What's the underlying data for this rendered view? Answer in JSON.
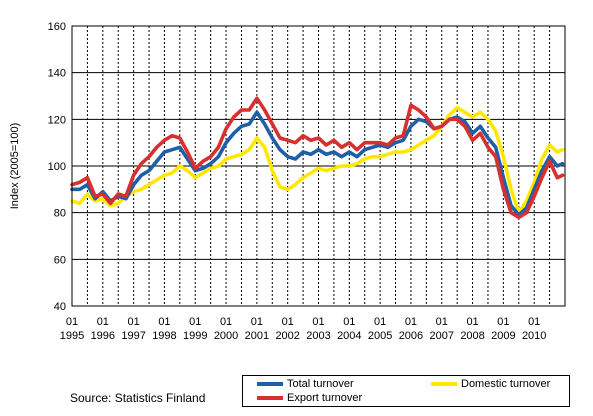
{
  "chart_data": {
    "type": "line",
    "title": "",
    "xlabel": "",
    "ylabel": "Index (2005=100)",
    "ylim": [
      40,
      160
    ],
    "yticks": [
      40,
      60,
      80,
      100,
      120,
      140,
      160
    ],
    "grid": true,
    "legend_position": "bottom-right",
    "x_start_year": 1995,
    "years": [
      "1995",
      "1996",
      "1997",
      "1998",
      "1999",
      "2000",
      "2001",
      "2002",
      "2003",
      "2004",
      "2005",
      "2006",
      "2007",
      "2008",
      "2009",
      "2010"
    ],
    "month_label": "01",
    "series": [
      {
        "name": "Total turnover",
        "color": "#1f5fa8",
        "points": [
          [
            1995.0,
            90
          ],
          [
            1995.25,
            90
          ],
          [
            1995.5,
            92
          ],
          [
            1995.75,
            86
          ],
          [
            1996.0,
            89
          ],
          [
            1996.25,
            85
          ],
          [
            1996.5,
            87
          ],
          [
            1996.75,
            86
          ],
          [
            1997.0,
            92
          ],
          [
            1997.25,
            96
          ],
          [
            1997.5,
            98
          ],
          [
            1997.75,
            102
          ],
          [
            1998.0,
            106
          ],
          [
            1998.25,
            107
          ],
          [
            1998.5,
            108
          ],
          [
            1998.75,
            103
          ],
          [
            1999.0,
            98
          ],
          [
            1999.25,
            99
          ],
          [
            1999.5,
            101
          ],
          [
            1999.75,
            104
          ],
          [
            2000.0,
            110
          ],
          [
            2000.25,
            114
          ],
          [
            2000.5,
            117
          ],
          [
            2000.75,
            118
          ],
          [
            2001.0,
            123
          ],
          [
            2001.25,
            118
          ],
          [
            2001.5,
            112
          ],
          [
            2001.75,
            107
          ],
          [
            2002.0,
            104
          ],
          [
            2002.25,
            103
          ],
          [
            2002.5,
            106
          ],
          [
            2002.75,
            105
          ],
          [
            2003.0,
            107
          ],
          [
            2003.25,
            105
          ],
          [
            2003.5,
            106
          ],
          [
            2003.75,
            104
          ],
          [
            2004.0,
            106
          ],
          [
            2004.25,
            104
          ],
          [
            2004.5,
            107
          ],
          [
            2004.75,
            108
          ],
          [
            2005.0,
            109
          ],
          [
            2005.25,
            108
          ],
          [
            2005.5,
            110
          ],
          [
            2005.75,
            111
          ],
          [
            2006.0,
            117
          ],
          [
            2006.25,
            120
          ],
          [
            2006.5,
            119
          ],
          [
            2006.75,
            116
          ],
          [
            2007.0,
            117
          ],
          [
            2007.25,
            120
          ],
          [
            2007.5,
            121
          ],
          [
            2007.75,
            119
          ],
          [
            2008.0,
            114
          ],
          [
            2008.25,
            117
          ],
          [
            2008.5,
            112
          ],
          [
            2008.75,
            108
          ],
          [
            2009.0,
            95
          ],
          [
            2009.25,
            83
          ],
          [
            2009.5,
            79
          ],
          [
            2009.75,
            82
          ],
          [
            2010.0,
            90
          ],
          [
            2010.25,
            98
          ],
          [
            2010.5,
            104
          ],
          [
            2010.75,
            100
          ],
          [
            2010.92,
            101
          ]
        ]
      },
      {
        "name": "Domestic turnover",
        "color": "#ffe800",
        "points": [
          [
            1995.0,
            85
          ],
          [
            1995.25,
            84
          ],
          [
            1995.5,
            88
          ],
          [
            1995.75,
            85
          ],
          [
            1996.0,
            86
          ],
          [
            1996.25,
            83
          ],
          [
            1996.5,
            84
          ],
          [
            1996.75,
            87
          ],
          [
            1997.0,
            89
          ],
          [
            1997.25,
            90
          ],
          [
            1997.5,
            92
          ],
          [
            1997.75,
            94
          ],
          [
            1998.0,
            96
          ],
          [
            1998.25,
            97
          ],
          [
            1998.5,
            100
          ],
          [
            1998.75,
            98
          ],
          [
            1999.0,
            95
          ],
          [
            1999.25,
            97
          ],
          [
            1999.5,
            99
          ],
          [
            1999.75,
            100
          ],
          [
            2000.0,
            103
          ],
          [
            2000.25,
            104
          ],
          [
            2000.5,
            105
          ],
          [
            2000.75,
            107
          ],
          [
            2001.0,
            112
          ],
          [
            2001.25,
            108
          ],
          [
            2001.5,
            98
          ],
          [
            2001.75,
            91
          ],
          [
            2002.0,
            90
          ],
          [
            2002.25,
            92
          ],
          [
            2002.5,
            95
          ],
          [
            2002.75,
            97
          ],
          [
            2003.0,
            99
          ],
          [
            2003.25,
            98
          ],
          [
            2003.5,
            99
          ],
          [
            2003.75,
            100
          ],
          [
            2004.0,
            100
          ],
          [
            2004.25,
            101
          ],
          [
            2004.5,
            103
          ],
          [
            2004.75,
            104
          ],
          [
            2005.0,
            104
          ],
          [
            2005.25,
            105
          ],
          [
            2005.5,
            106
          ],
          [
            2005.75,
            106
          ],
          [
            2006.0,
            107
          ],
          [
            2006.25,
            109
          ],
          [
            2006.5,
            111
          ],
          [
            2006.75,
            113
          ],
          [
            2007.0,
            117
          ],
          [
            2007.25,
            122
          ],
          [
            2007.5,
            125
          ],
          [
            2007.75,
            123
          ],
          [
            2008.0,
            121
          ],
          [
            2008.25,
            123
          ],
          [
            2008.5,
            120
          ],
          [
            2008.75,
            115
          ],
          [
            2009.0,
            104
          ],
          [
            2009.25,
            90
          ],
          [
            2009.5,
            80
          ],
          [
            2009.75,
            85
          ],
          [
            2010.0,
            93
          ],
          [
            2010.25,
            103
          ],
          [
            2010.5,
            109
          ],
          [
            2010.75,
            106
          ],
          [
            2010.92,
            107
          ]
        ]
      },
      {
        "name": "Export turnover",
        "color": "#d8302f",
        "points": [
          [
            1995.0,
            92
          ],
          [
            1995.25,
            93
          ],
          [
            1995.5,
            95
          ],
          [
            1995.75,
            87
          ],
          [
            1996.0,
            88
          ],
          [
            1996.25,
            84
          ],
          [
            1996.5,
            88
          ],
          [
            1996.75,
            87
          ],
          [
            1997.0,
            96
          ],
          [
            1997.25,
            101
          ],
          [
            1997.5,
            104
          ],
          [
            1997.75,
            108
          ],
          [
            1998.0,
            111
          ],
          [
            1998.25,
            113
          ],
          [
            1998.5,
            112
          ],
          [
            1998.75,
            106
          ],
          [
            1999.0,
            99
          ],
          [
            1999.25,
            102
          ],
          [
            1999.5,
            104
          ],
          [
            1999.75,
            108
          ],
          [
            2000.0,
            116
          ],
          [
            2000.25,
            121
          ],
          [
            2000.5,
            124
          ],
          [
            2000.75,
            124
          ],
          [
            2001.0,
            129
          ],
          [
            2001.25,
            124
          ],
          [
            2001.5,
            118
          ],
          [
            2001.75,
            112
          ],
          [
            2002.0,
            111
          ],
          [
            2002.25,
            110
          ],
          [
            2002.5,
            113
          ],
          [
            2002.75,
            111
          ],
          [
            2003.0,
            112
          ],
          [
            2003.25,
            109
          ],
          [
            2003.5,
            111
          ],
          [
            2003.75,
            108
          ],
          [
            2004.0,
            110
          ],
          [
            2004.25,
            107
          ],
          [
            2004.5,
            110
          ],
          [
            2004.75,
            110
          ],
          [
            2005.0,
            110
          ],
          [
            2005.25,
            109
          ],
          [
            2005.5,
            112
          ],
          [
            2005.75,
            113
          ],
          [
            2006.0,
            126
          ],
          [
            2006.25,
            124
          ],
          [
            2006.5,
            121
          ],
          [
            2006.75,
            116
          ],
          [
            2007.0,
            117
          ],
          [
            2007.25,
            120
          ],
          [
            2007.5,
            120
          ],
          [
            2007.75,
            117
          ],
          [
            2008.0,
            111
          ],
          [
            2008.25,
            114
          ],
          [
            2008.5,
            108
          ],
          [
            2008.75,
            104
          ],
          [
            2009.0,
            90
          ],
          [
            2009.25,
            80
          ],
          [
            2009.5,
            78
          ],
          [
            2009.75,
            80
          ],
          [
            2010.0,
            87
          ],
          [
            2010.25,
            95
          ],
          [
            2010.5,
            102
          ],
          [
            2010.75,
            95
          ],
          [
            2010.92,
            96
          ]
        ]
      }
    ]
  },
  "source": "Source: Statistics Finland",
  "legend": {
    "total": "Total turnover",
    "domestic": "Domestic turnover",
    "export": "Export turnover"
  }
}
